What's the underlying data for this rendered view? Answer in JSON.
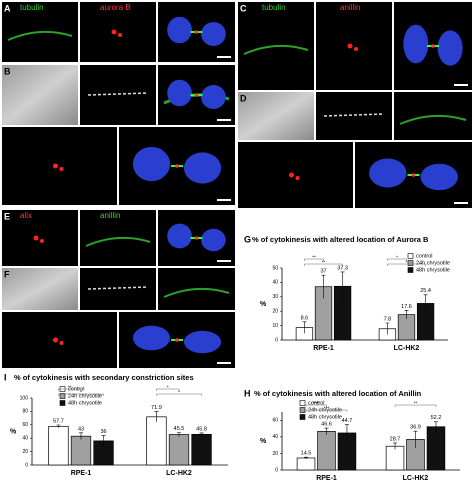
{
  "panels": [
    {
      "letter": "A",
      "labels": [
        "tubulin",
        "aurora B"
      ]
    },
    {
      "letter": "B",
      "labels": []
    },
    {
      "letter": "C",
      "labels": [
        "tubulin",
        "anillin"
      ]
    },
    {
      "letter": "D",
      "labels": []
    },
    {
      "letter": "E",
      "labels": [
        "alix",
        "anillin"
      ]
    },
    {
      "letter": "F",
      "labels": []
    }
  ],
  "chart_data": [
    {
      "type": "bar",
      "panel_label": "G",
      "title": "% of cytokinesis with altered location of Aurora B",
      "ylabel": "%",
      "categories": [
        "RPE-1",
        "LC-HK2"
      ],
      "ylim": [
        0,
        50
      ],
      "yticks": [
        0,
        10,
        20,
        30,
        40,
        50
      ],
      "series": [
        {
          "name": "control",
          "color": "#ffffff",
          "values": [
            8.6,
            7.8
          ],
          "errors": [
            4,
            4
          ]
        },
        {
          "name": "24h chrysotile",
          "color": "#a0a0a0",
          "values": [
            37,
            17.6
          ],
          "errors": [
            8,
            3
          ]
        },
        {
          "name": "48h chrysotile",
          "color": "#111111",
          "values": [
            37.3,
            25.4
          ],
          "errors": [
            10,
            6
          ]
        }
      ],
      "significance": [
        {
          "category": 0,
          "between": [
            0,
            1
          ],
          "label": "**"
        },
        {
          "category": 0,
          "between": [
            0,
            2
          ],
          "label": "**"
        },
        {
          "category": 1,
          "between": [
            0,
            1
          ],
          "label": "*"
        },
        {
          "category": 1,
          "between": [
            0,
            2
          ],
          "label": "*"
        }
      ]
    },
    {
      "type": "bar",
      "panel_label": "H",
      "title": "% of cytokinesis with altered location of Anillin",
      "ylabel": "%",
      "categories": [
        "RPE-1",
        "LC-HK2"
      ],
      "ylim": [
        0,
        70
      ],
      "yticks": [
        0,
        20,
        40,
        60
      ],
      "series": [
        {
          "name": "control",
          "color": "#ffffff",
          "values": [
            14.5,
            28.7
          ],
          "errors": [
            1,
            4
          ]
        },
        {
          "name": "24h chrysotile",
          "color": "#a0a0a0",
          "values": [
            46.6,
            36.9
          ],
          "errors": [
            4,
            10
          ]
        },
        {
          "name": "48h chrysotile",
          "color": "#111111",
          "values": [
            44.7,
            52.2
          ],
          "errors": [
            10,
            6
          ]
        }
      ],
      "significance": [
        {
          "category": 0,
          "between": [
            0,
            1
          ],
          "label": "****"
        },
        {
          "category": 0,
          "between": [
            0,
            2
          ],
          "label": "***"
        },
        {
          "category": 1,
          "between": [
            0,
            2
          ],
          "label": "**"
        }
      ]
    },
    {
      "type": "bar",
      "panel_label": "I",
      "title": "% of cytokinesis with secondary constriction sites",
      "ylabel": "%",
      "categories": [
        "RPE-1",
        "LC-HK2"
      ],
      "ylim": [
        0,
        100
      ],
      "yticks": [
        0,
        20,
        40,
        60,
        80,
        100
      ],
      "series": [
        {
          "name": "control",
          "color": "#ffffff",
          "values": [
            57.7,
            71.9
          ],
          "errors": [
            2,
            8
          ]
        },
        {
          "name": "24h chrysotile",
          "color": "#a0a0a0",
          "values": [
            43,
            45.5
          ],
          "errors": [
            5,
            3
          ]
        },
        {
          "name": "48h chrysotile",
          "color": "#111111",
          "values": [
            36,
            45.8
          ],
          "errors": [
            8,
            2
          ]
        }
      ],
      "significance": [
        {
          "category": 0,
          "between": [
            0,
            1
          ],
          "label": "**"
        },
        {
          "category": 0,
          "between": [
            0,
            2
          ],
          "label": "*"
        },
        {
          "category": 1,
          "between": [
            0,
            1
          ],
          "label": "*"
        },
        {
          "category": 1,
          "between": [
            0,
            2
          ],
          "label": "*"
        }
      ]
    }
  ]
}
